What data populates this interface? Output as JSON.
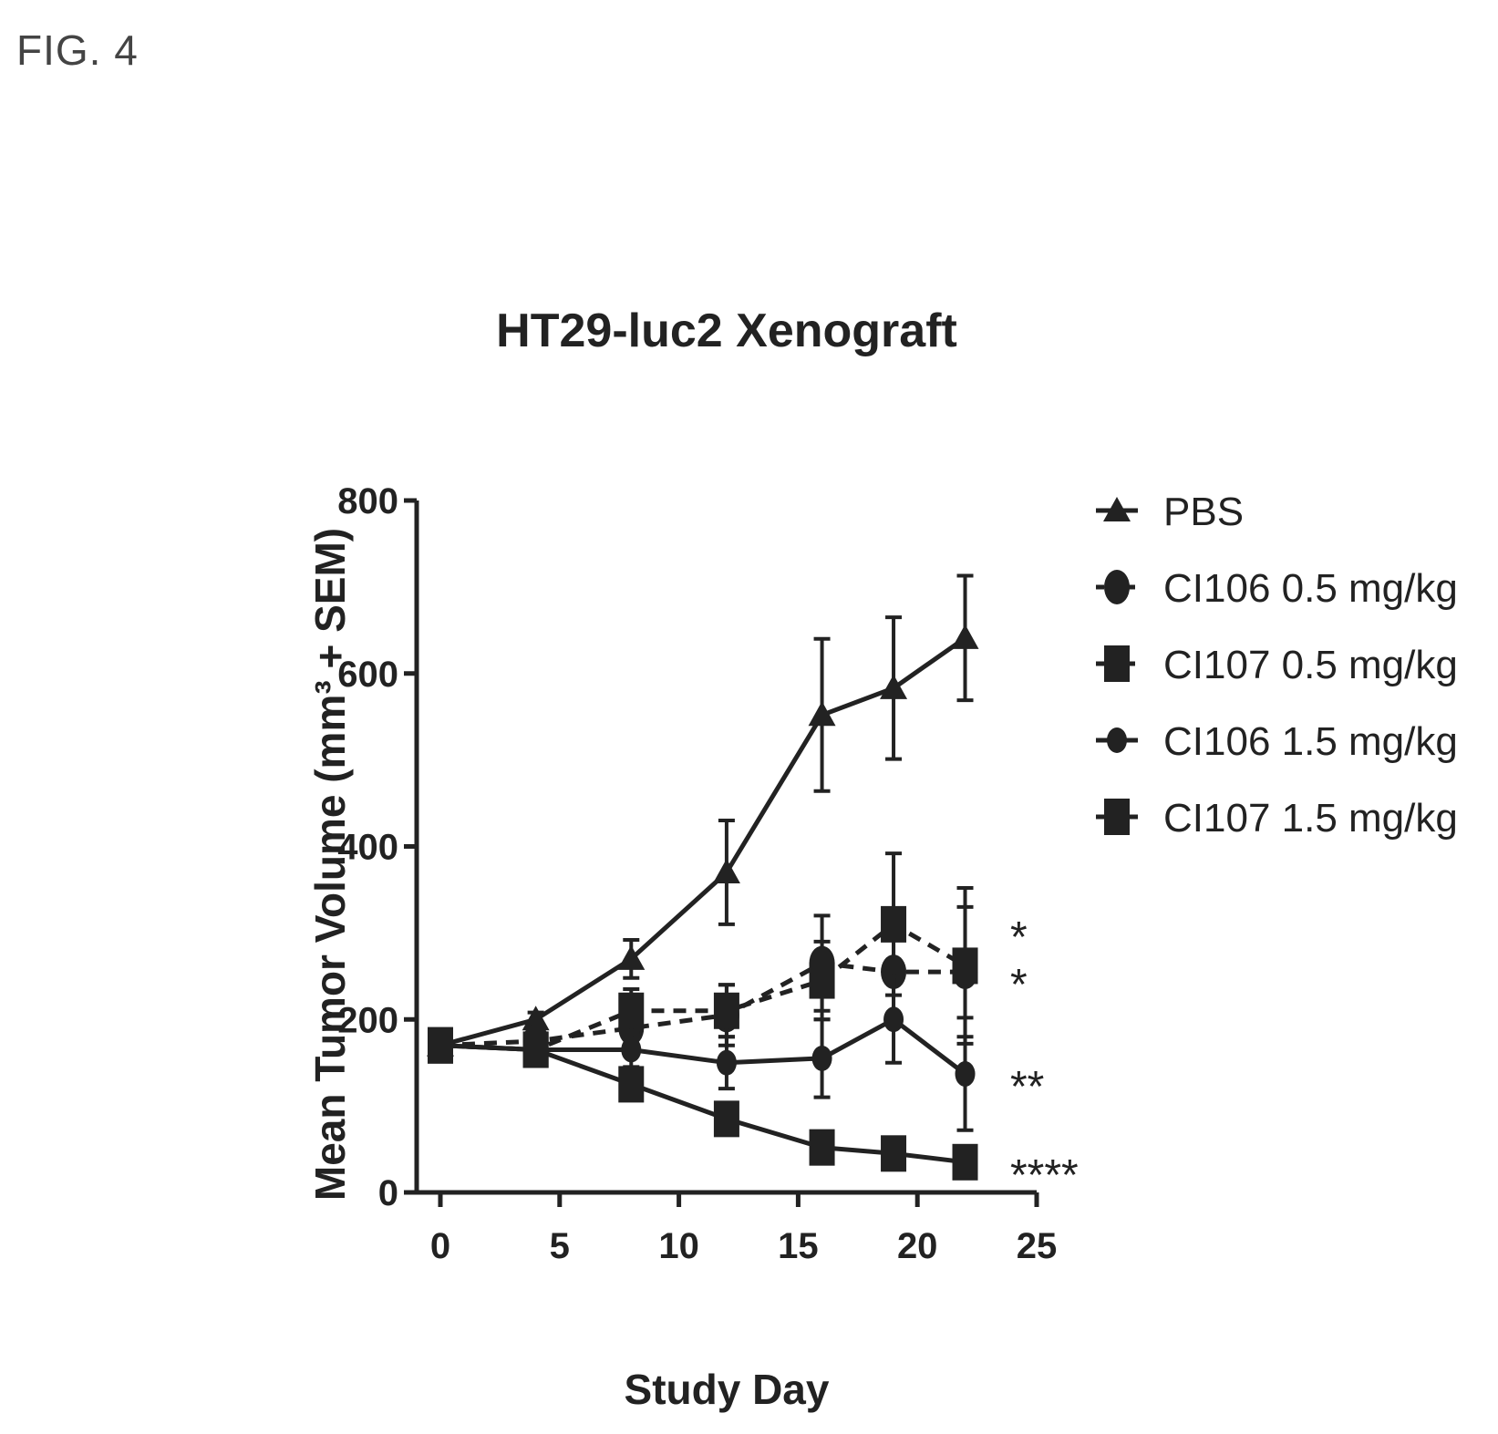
{
  "figure_label": "FIG. 4",
  "chart_data": {
    "type": "line",
    "title": "HT29-luc2 Xenograft",
    "xlabel": "Study Day",
    "ylabel": "Mean Tumor Volume (mm³ + SEM)",
    "xlim": [
      0,
      25
    ],
    "ylim": [
      0,
      800
    ],
    "xticks": [
      0,
      5,
      10,
      15,
      20,
      25
    ],
    "yticks": [
      0,
      200,
      400,
      600,
      800
    ],
    "legend_position": "right",
    "series": [
      {
        "name": "PBS",
        "marker": "triangle",
        "line": "solid",
        "x": [
          0,
          4,
          8,
          12,
          16,
          19,
          22
        ],
        "y": [
          170,
          200,
          270,
          370,
          552,
          583,
          641
        ],
        "err": [
          0,
          8,
          22,
          60,
          88,
          82,
          72
        ]
      },
      {
        "name": "CI106 0.5 mg/kg",
        "marker": "circle-large",
        "line": "dashed",
        "x": [
          0,
          4,
          8,
          12,
          16,
          19,
          22
        ],
        "y": [
          170,
          175,
          190,
          205,
          265,
          255,
          255
        ],
        "err": [
          0,
          10,
          25,
          35,
          55,
          50,
          75
        ]
      },
      {
        "name": "CI107 0.5 mg/kg",
        "marker": "square",
        "line": "dashed",
        "x": [
          0,
          4,
          8,
          12,
          16,
          19,
          22
        ],
        "y": [
          170,
          165,
          210,
          210,
          245,
          310,
          262
        ],
        "err": [
          0,
          12,
          25,
          30,
          45,
          82,
          90
        ]
      },
      {
        "name": "CI106 1.5 mg/kg",
        "marker": "circle",
        "line": "solid",
        "x": [
          0,
          4,
          8,
          12,
          16,
          19,
          22
        ],
        "y": [
          170,
          165,
          165,
          150,
          155,
          200,
          137
        ],
        "err": [
          0,
          10,
          20,
          30,
          45,
          50,
          65
        ]
      },
      {
        "name": "CI107 1.5 mg/kg",
        "marker": "square",
        "line": "solid",
        "x": [
          0,
          4,
          8,
          12,
          16,
          19,
          22
        ],
        "y": [
          170,
          165,
          125,
          85,
          52,
          45,
          35
        ],
        "err": [
          0,
          8,
          15,
          15,
          10,
          10,
          8
        ]
      }
    ],
    "annotations": [
      {
        "text": "*",
        "y": 310
      },
      {
        "text": "*",
        "y": 255
      },
      {
        "text": "**",
        "y": 137
      },
      {
        "text": "****",
        "y": 35
      }
    ]
  }
}
